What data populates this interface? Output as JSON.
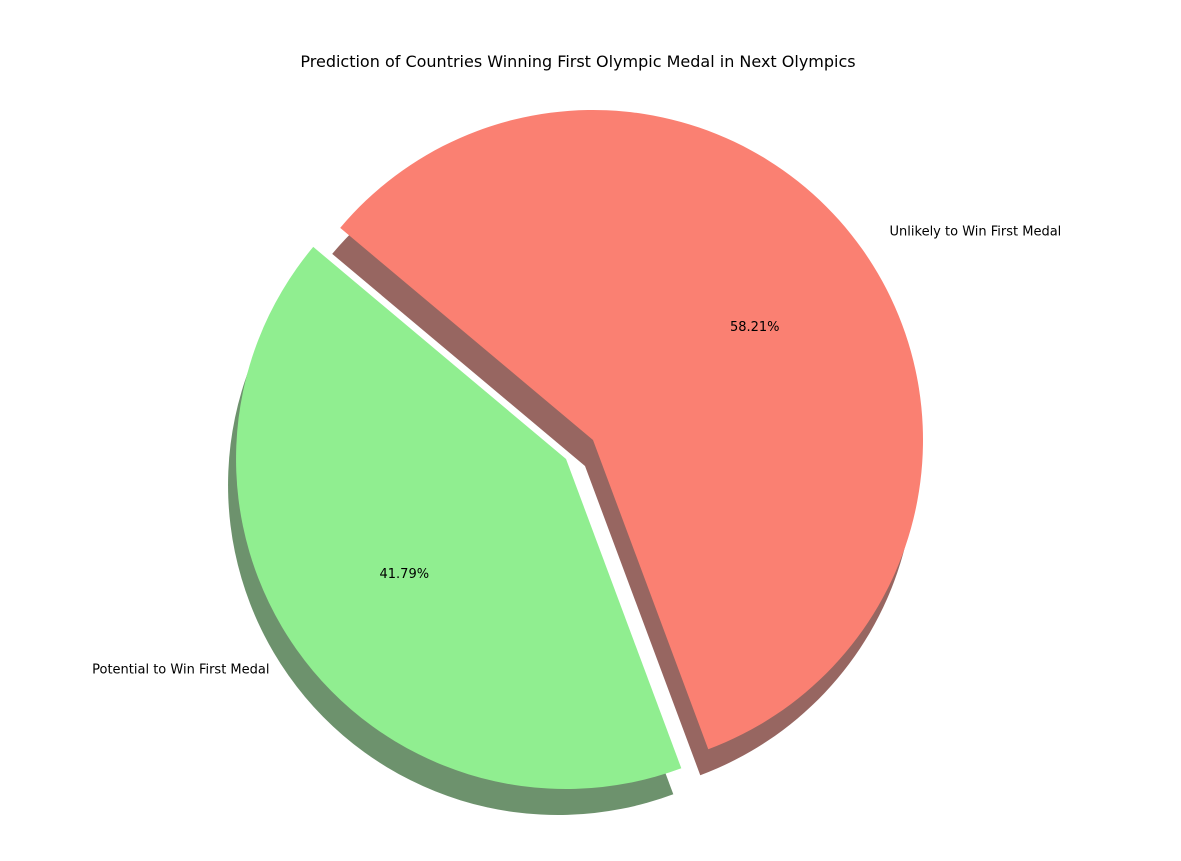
{
  "chart_data": {
    "type": "pie",
    "title": "Prediction of Countries Winning First Olympic Medal in Next Olympics",
    "slices": [
      {
        "label": "Potential to Win First Medal",
        "value": 41.79,
        "value_label": "41.79%",
        "color": "#90ee90",
        "exploded": true
      },
      {
        "label": "Unlikely to Win First Medal",
        "value": 58.21,
        "value_label": "58.21%",
        "color": "#fa8072",
        "exploded": false
      }
    ],
    "start_angle_degrees": 140,
    "shadow": true
  }
}
